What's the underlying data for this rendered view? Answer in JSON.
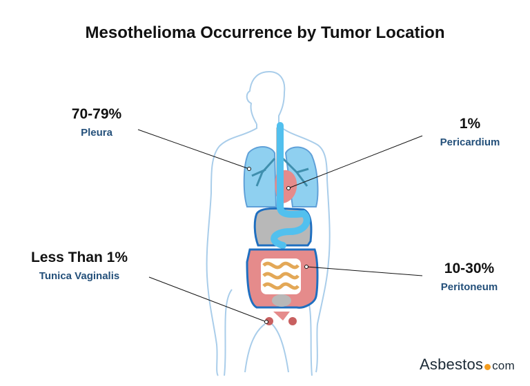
{
  "title": "Mesothelioma Occurrence by Tumor Location",
  "locations": [
    {
      "percent": "70-79%",
      "name": "Pleura"
    },
    {
      "percent": "1%",
      "name": "Pericardium"
    },
    {
      "percent": "Less Than 1%",
      "name": "Tunica Vaginalis"
    },
    {
      "percent": "10-30%",
      "name": "Peritoneum"
    }
  ],
  "logo": {
    "brand": "Asbestos",
    "suffix": "com"
  },
  "colors": {
    "label": "#24507a",
    "outline": "#a9cdea",
    "lungs": "#8fd0f0",
    "organs": "#e58b8b",
    "intestine": "#e3a857",
    "accent": "#f39c1f"
  }
}
